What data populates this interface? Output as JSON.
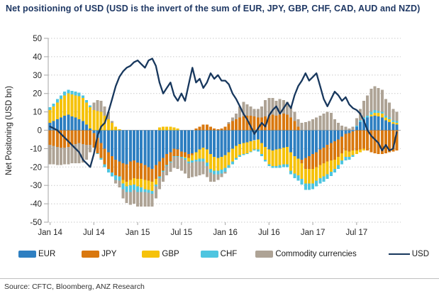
{
  "page": {
    "title": "Net positioning of USD (USD is the invert of the sum of EUR, JPY, GBP, CHF, CAD, AUD and NZD)",
    "source": "Source: CFTC, Bloomberg, ANZ Research"
  },
  "colors": {
    "title_text": "#1f3864",
    "axis_text": "#262626",
    "grid": "#c9c9c9",
    "zero_line": "#a6a6a6",
    "axis_line": "#b3b3b3",
    "divider": "#bfbfbf",
    "background": "#ffffff"
  },
  "chart_data": {
    "type": "bar",
    "subtype": "stacked-bars-with-line-overlay",
    "title": "Net positioning of USD (USD is the invert of the sum of EUR, JPY, GBP, CHF, CAD, AUD and NZD)",
    "xlabel": "",
    "ylabel": "Net Positoning (USD bn)",
    "ylim": [
      -50,
      50
    ],
    "ytick_step": 10,
    "y_ticks": [
      50,
      40,
      30,
      20,
      10,
      0,
      -10,
      -20,
      -30,
      -40,
      -50
    ],
    "x_tick_labels": [
      "Jan 14",
      "Jul 14",
      "Jan 15",
      "Jul 15",
      "Jan 16",
      "Jul 16",
      "Jan 17",
      "Jul 17"
    ],
    "x_tick_month_index": [
      0,
      6,
      12,
      18,
      24,
      30,
      36,
      42
    ],
    "x_start": "Jan 2014",
    "x_end": "Dec 2017",
    "points_per_month": 2,
    "grid": "horizontal-dotted",
    "legend_position": "bottom",
    "series": [
      {
        "name": "EUR",
        "color": "#2e7fc1",
        "values": [
          4,
          5,
          6,
          7,
          8,
          8.5,
          7.5,
          7,
          6,
          5,
          3,
          1,
          -1.5,
          -4,
          -7,
          -10,
          -12,
          -14,
          -16,
          -17,
          -18,
          -18.5,
          -17,
          -16.5,
          -17.5,
          -18,
          -19,
          -20,
          -21,
          -19,
          -17,
          -15,
          -13,
          -12,
          -10,
          -10.5,
          -11.5,
          -12,
          -13,
          -12.5,
          -12,
          -10.5,
          -9.5,
          -10.5,
          -13,
          -14.5,
          -15,
          -14.5,
          -13.5,
          -12,
          -10,
          -8.5,
          -7.5,
          -7,
          -6.5,
          -6,
          -5.5,
          -5,
          -7,
          -9,
          -10.5,
          -11,
          -10.5,
          -10,
          -9.5,
          -9,
          -12,
          -14,
          -15.5,
          -16,
          -15,
          -14,
          -13,
          -12,
          -10.5,
          -9.5,
          -8,
          -7,
          -6,
          -5,
          -3.5,
          -2,
          -1.5,
          -0.5,
          2,
          4.5,
          6,
          7,
          7.5,
          8,
          7.5,
          7,
          5.5,
          4.5,
          3.5,
          3
        ]
      },
      {
        "name": "JPY",
        "color": "#d9780f",
        "values": [
          -8,
          -8.5,
          -9,
          -9.5,
          -9.5,
          -9,
          -8,
          -7.5,
          -7,
          -7.5,
          -8,
          -8,
          -8,
          -8.5,
          -8,
          -8.5,
          -9,
          -9,
          -8.5,
          -8,
          -9,
          -9.5,
          -10,
          -9.5,
          -9,
          -8.5,
          -8,
          -7.5,
          -7,
          -7.5,
          -8,
          -7,
          -6,
          -5,
          -4,
          -3.5,
          -3,
          -2.5,
          -2,
          -1,
          1,
          2,
          3,
          3,
          2,
          1,
          0.5,
          1,
          2,
          3.5,
          5,
          6,
          7,
          7.5,
          8,
          8,
          7.5,
          7,
          7,
          7.5,
          8,
          8.5,
          8,
          8.5,
          9,
          8.5,
          7,
          5,
          2,
          -2,
          -6,
          -7,
          -8,
          -8,
          -8.5,
          -8.5,
          -9,
          -9.5,
          -10,
          -9.5,
          -9,
          -9,
          -10,
          -10.5,
          -11,
          -10.5,
          -10,
          -11,
          -12,
          -12.5,
          -13,
          -13,
          -12.5,
          -12,
          -11.5,
          -11
        ]
      },
      {
        "name": "GBP",
        "color": "#f6c20a",
        "values": [
          7,
          8,
          9,
          10,
          11,
          11.5,
          12,
          12,
          12.5,
          12.5,
          12,
          11.5,
          11,
          10.5,
          10,
          8,
          6,
          4,
          2,
          0.5,
          -2,
          -2.5,
          -3,
          -3.5,
          -4,
          -4.5,
          -5,
          -5,
          -5,
          -3,
          1.5,
          2,
          2,
          2,
          1.5,
          1,
          0,
          -0.5,
          -2,
          -3,
          -4,
          -5,
          -6,
          -7,
          -8,
          -7.5,
          -7,
          -7,
          -7,
          -7,
          -7,
          -6.5,
          -6,
          -6,
          -6,
          -5.5,
          -5,
          -5.5,
          -6,
          -7,
          -8,
          -8.5,
          -9,
          -9,
          -9,
          -9.5,
          -10,
          -9.5,
          -9,
          -8.5,
          -8,
          -8,
          -8,
          -7.5,
          -7,
          -7,
          -7,
          -6,
          -5,
          -4.5,
          -4,
          -3.5,
          -3,
          -2.5,
          -2,
          -1.5,
          -1,
          0,
          1,
          1.5,
          2,
          2,
          1.5,
          1.5,
          1,
          1
        ]
      },
      {
        "name": "CHF",
        "color": "#4ec5e0",
        "values": [
          1.5,
          1.5,
          2,
          2,
          2,
          2,
          2,
          2,
          2,
          1.5,
          1.5,
          1,
          0,
          -0.5,
          -1,
          -1.5,
          -2,
          -2,
          -2.5,
          -2.5,
          -3,
          -3,
          -3.5,
          -3,
          -3,
          -2.5,
          -1.5,
          -1.5,
          -1.5,
          -1,
          -1,
          -0.5,
          -0.5,
          -0.5,
          -0.5,
          -0.5,
          -0.5,
          -1,
          -1,
          -1,
          -1,
          -1.5,
          -1.5,
          -2,
          -2,
          -2,
          -2,
          -2,
          -2,
          -1.5,
          -1.5,
          -1,
          -1,
          -0.5,
          -0.5,
          -0.5,
          -0.5,
          -1,
          -1,
          -1,
          -1,
          -1,
          -1,
          -1.5,
          -1.5,
          -1.5,
          -2,
          -2.5,
          -3,
          -3,
          -3.5,
          -3.5,
          -3,
          -3,
          -3,
          -3,
          -2.5,
          -2.5,
          -2,
          -2,
          -2,
          -2,
          -1.5,
          -1,
          0.5,
          1,
          1,
          1,
          1.5,
          1.5,
          1,
          1,
          1,
          1,
          1,
          1
        ]
      },
      {
        "name": "Commodity currencies",
        "color": "#aea395",
        "values": [
          -10.5,
          -10,
          -10,
          -9.5,
          -9,
          -9.5,
          -10,
          -10.5,
          -11,
          -10,
          -8,
          -4,
          4,
          6,
          6,
          5,
          4,
          1,
          -2,
          -3.5,
          -5,
          -6,
          -7,
          -7.5,
          -8,
          -8,
          -8,
          -7.5,
          -7,
          -6.5,
          -6,
          -5.5,
          -5,
          -5,
          -6,
          -6.5,
          -7,
          -7.5,
          -8,
          -8,
          -8,
          -7.5,
          -7,
          -6,
          -5,
          -4,
          -3,
          -2,
          -1,
          1,
          2,
          3,
          6,
          8,
          6,
          5,
          4,
          4.5,
          6,
          9,
          9.5,
          9,
          8,
          8.5,
          7.5,
          7,
          6,
          5,
          4,
          4,
          4.5,
          5,
          6,
          7,
          8,
          9,
          10,
          9.5,
          6,
          4,
          2.5,
          2,
          1,
          2,
          4,
          6,
          9,
          11,
          12.5,
          13,
          12.5,
          12,
          9,
          8,
          6,
          5
        ]
      }
    ],
    "line_series": {
      "name": "USD",
      "color": "#17375d",
      "values": [
        2,
        1,
        0,
        -2,
        -4,
        -6,
        -8,
        -10,
        -12,
        -16,
        -18,
        -20,
        -13,
        -3,
        2,
        4,
        10,
        17,
        24,
        29,
        32,
        34,
        35,
        37,
        38,
        36,
        34,
        38,
        39,
        35,
        26,
        20,
        23,
        26,
        19,
        16,
        20,
        16,
        25,
        34,
        26,
        28,
        23,
        26,
        31,
        28,
        30,
        27,
        27,
        25,
        20,
        17,
        13,
        9,
        6,
        2,
        -2,
        1,
        4,
        2,
        8,
        11,
        13,
        9,
        12,
        15,
        12,
        19,
        24,
        27,
        31,
        27,
        29,
        31,
        24,
        17,
        13,
        17,
        21,
        19,
        16,
        18,
        14,
        12,
        11,
        9,
        5,
        0,
        -3,
        -5,
        -7,
        -11,
        -8,
        -11,
        -10,
        -1
      ]
    }
  }
}
